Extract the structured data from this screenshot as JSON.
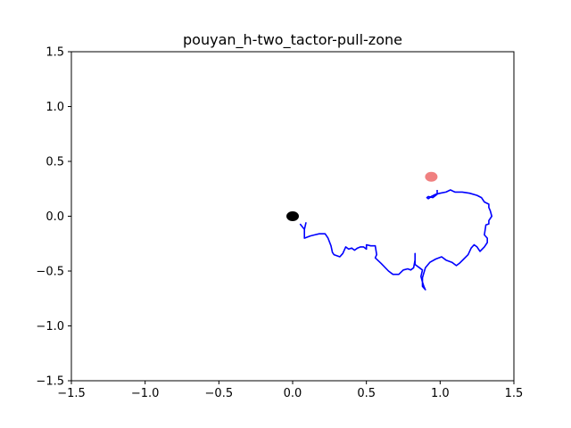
{
  "chart_data": {
    "type": "line",
    "title": "pouyan_h-two_tactor-pull-zone",
    "xlabel": "",
    "ylabel": "",
    "xlim": [
      -1.5,
      1.5
    ],
    "ylim": [
      -1.5,
      1.5
    ],
    "xticks": [
      -1.5,
      -1.0,
      -0.5,
      0.0,
      0.5,
      1.0,
      1.5
    ],
    "xtick_labels": [
      "−1.5",
      "−1.0",
      "−0.5",
      "0.0",
      "0.5",
      "1.0",
      "1.5"
    ],
    "yticks": [
      -1.5,
      -1.0,
      -0.5,
      0.0,
      0.5,
      1.0,
      1.5
    ],
    "ytick_labels": [
      "−1.5",
      "−1.0",
      "−0.5",
      "0.0",
      "0.5",
      "1.0",
      "1.5"
    ],
    "grid": false,
    "markers": [
      {
        "x": 0.0,
        "y": 0.0,
        "color": "#000000"
      },
      {
        "x": 0.94,
        "y": 0.36,
        "color": "#f08080"
      }
    ],
    "series": [
      {
        "color": "#0000ff",
        "points": [
          [
            0.05,
            -0.07
          ],
          [
            0.08,
            -0.12
          ],
          [
            0.09,
            -0.06
          ],
          [
            0.08,
            -0.12
          ],
          [
            0.08,
            -0.2
          ],
          [
            0.12,
            -0.18
          ],
          [
            0.15,
            -0.17
          ],
          [
            0.18,
            -0.16
          ],
          [
            0.22,
            -0.16
          ],
          [
            0.24,
            -0.2
          ],
          [
            0.26,
            -0.27
          ],
          [
            0.27,
            -0.33
          ],
          [
            0.28,
            -0.35
          ],
          [
            0.32,
            -0.37
          ],
          [
            0.34,
            -0.34
          ],
          [
            0.36,
            -0.28
          ],
          [
            0.38,
            -0.3
          ],
          [
            0.4,
            -0.29
          ],
          [
            0.42,
            -0.31
          ],
          [
            0.44,
            -0.29
          ],
          [
            0.46,
            -0.28
          ],
          [
            0.48,
            -0.28
          ],
          [
            0.5,
            -0.3
          ],
          [
            0.5,
            -0.26
          ],
          [
            0.53,
            -0.27
          ],
          [
            0.56,
            -0.27
          ],
          [
            0.57,
            -0.35
          ],
          [
            0.56,
            -0.38
          ],
          [
            0.6,
            -0.43
          ],
          [
            0.65,
            -0.5
          ],
          [
            0.68,
            -0.53
          ],
          [
            0.72,
            -0.53
          ],
          [
            0.75,
            -0.49
          ],
          [
            0.78,
            -0.48
          ],
          [
            0.8,
            -0.49
          ],
          [
            0.82,
            -0.47
          ],
          [
            0.83,
            -0.4
          ],
          [
            0.83,
            -0.34
          ],
          [
            0.83,
            -0.44
          ],
          [
            0.86,
            -0.47
          ],
          [
            0.88,
            -0.49
          ],
          [
            0.87,
            -0.55
          ],
          [
            0.88,
            -0.6
          ],
          [
            0.89,
            -0.64
          ],
          [
            0.9,
            -0.67
          ],
          [
            0.88,
            -0.64
          ],
          [
            0.88,
            -0.56
          ],
          [
            0.9,
            -0.47
          ],
          [
            0.93,
            -0.42
          ],
          [
            0.97,
            -0.39
          ],
          [
            1.01,
            -0.37
          ],
          [
            1.04,
            -0.4
          ],
          [
            1.08,
            -0.42
          ],
          [
            1.11,
            -0.45
          ],
          [
            1.13,
            -0.43
          ],
          [
            1.16,
            -0.39
          ],
          [
            1.19,
            -0.35
          ],
          [
            1.21,
            -0.29
          ],
          [
            1.23,
            -0.26
          ],
          [
            1.25,
            -0.28
          ],
          [
            1.27,
            -0.32
          ],
          [
            1.3,
            -0.28
          ],
          [
            1.32,
            -0.24
          ],
          [
            1.32,
            -0.2
          ],
          [
            1.3,
            -0.17
          ],
          [
            1.31,
            -0.08
          ],
          [
            1.33,
            -0.07
          ],
          [
            1.33,
            -0.04
          ],
          [
            1.35,
            0.0
          ],
          [
            1.34,
            0.05
          ],
          [
            1.33,
            0.08
          ],
          [
            1.33,
            0.11
          ],
          [
            1.3,
            0.13
          ],
          [
            1.28,
            0.17
          ],
          [
            1.25,
            0.19
          ],
          [
            1.2,
            0.21
          ],
          [
            1.15,
            0.22
          ],
          [
            1.1,
            0.22
          ],
          [
            1.07,
            0.24
          ],
          [
            1.04,
            0.22
          ],
          [
            1.0,
            0.21
          ],
          [
            0.97,
            0.2
          ],
          [
            0.94,
            0.18
          ],
          [
            0.92,
            0.16
          ],
          [
            0.91,
            0.17
          ],
          [
            0.92,
            0.18
          ],
          [
            0.95,
            0.17
          ],
          [
            0.98,
            0.2
          ],
          [
            0.98,
            0.24
          ]
        ]
      }
    ]
  }
}
